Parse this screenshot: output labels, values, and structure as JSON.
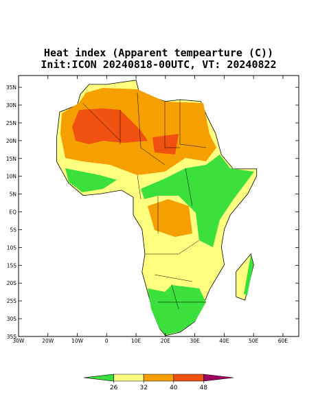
{
  "map": {
    "title": [
      "Heat index (Apparent tempearture (C))",
      "Init:ICON 20240818-00UTC, VT: 20240822"
    ],
    "lonlim": [
      -30,
      65.4
    ],
    "latlim": [
      -35,
      38.3
    ],
    "lat_ticks": [
      {
        "value": 35,
        "label": "35N"
      },
      {
        "value": 30,
        "label": "30N"
      },
      {
        "value": 25,
        "label": "25N"
      },
      {
        "value": 20,
        "label": "20N"
      },
      {
        "value": 15,
        "label": "15N"
      },
      {
        "value": 10,
        "label": "10N"
      },
      {
        "value": 5,
        "label": "5N"
      },
      {
        "value": 0,
        "label": "EQ"
      },
      {
        "value": -5,
        "label": "5S"
      },
      {
        "value": -10,
        "label": "10S"
      },
      {
        "value": -15,
        "label": "15S"
      },
      {
        "value": -20,
        "label": "20S"
      },
      {
        "value": -25,
        "label": "25S"
      },
      {
        "value": -30,
        "label": "30S"
      },
      {
        "value": -35,
        "label": "35S"
      }
    ],
    "lon_ticks": [
      {
        "value": -30,
        "label": "30W"
      },
      {
        "value": -20,
        "label": "20W"
      },
      {
        "value": -10,
        "label": "10W"
      },
      0,
      {
        "value": 10,
        "label": "10E"
      },
      {
        "value": 20,
        "label": "20E"
      },
      {
        "value": 30,
        "label": "30E"
      },
      {
        "value": 40,
        "label": "40E"
      },
      {
        "value": 50,
        "label": "50E"
      },
      {
        "value": 60,
        "label": "60E"
      }
    ],
    "colorbar": {
      "levels": [
        26,
        32,
        40,
        48
      ],
      "colors": [
        "#3ce03c",
        "#ffff80",
        "#f5a000",
        "#f05010",
        "#a00060"
      ]
    }
  }
}
